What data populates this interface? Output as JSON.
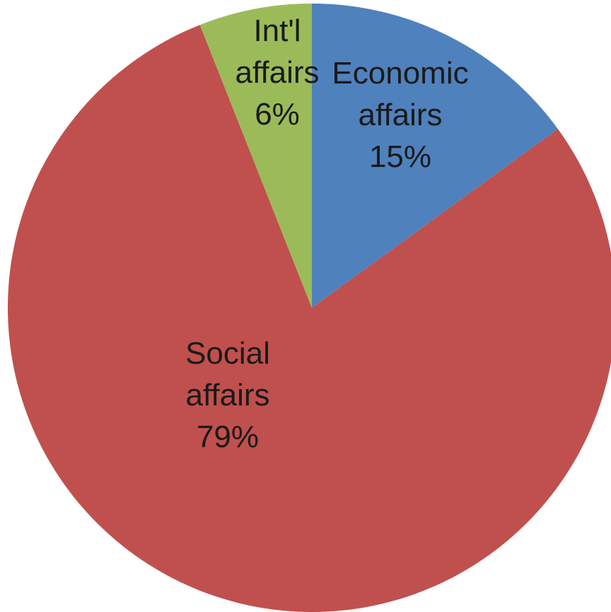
{
  "chart_data": {
    "type": "pie",
    "title": "",
    "slices": [
      {
        "name": "Economic affairs",
        "label_lines": [
          "Economic",
          "affairs",
          "15%"
        ],
        "value": 15,
        "color": "#4f81bd"
      },
      {
        "name": "Social affairs",
        "label_lines": [
          "Social",
          "affairs",
          "79%"
        ],
        "value": 79,
        "color": "#c0504d"
      },
      {
        "name": "Int'l affairs",
        "label_lines": [
          "Int'l",
          "affairs",
          "6%"
        ],
        "value": 6,
        "color": "#9bbb59"
      }
    ],
    "start_angle_deg": 0,
    "direction": "clockwise",
    "legend": "none",
    "data_labels": "inside"
  }
}
